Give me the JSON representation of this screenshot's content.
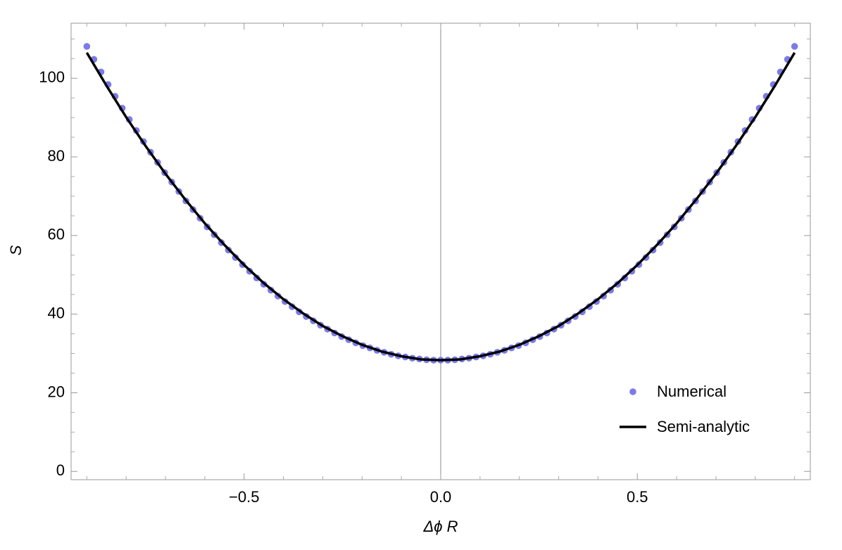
{
  "chart_data": {
    "type": "scatter",
    "x_label": "Δϕ R",
    "y_label": "S",
    "xlim": [
      -0.94,
      0.94
    ],
    "ylim": [
      -2.1,
      114
    ],
    "xticks": [
      {
        "value": -0.5,
        "label": "−0.5"
      },
      {
        "value": 0,
        "label": "0.0"
      },
      {
        "value": 0.5,
        "label": "0.5"
      }
    ],
    "yticks": [
      0,
      20,
      40,
      60,
      80,
      100
    ],
    "x_minor_ticks": [
      -0.9,
      -0.8,
      -0.7,
      -0.6,
      -0.4,
      -0.3,
      -0.2,
      -0.1,
      0.1,
      0.2,
      0.3,
      0.4,
      0.6,
      0.7,
      0.8,
      0.9
    ],
    "y_minor_ticks": [
      5,
      10,
      15,
      25,
      30,
      35,
      45,
      50,
      55,
      65,
      70,
      75,
      85,
      90,
      95,
      105,
      110
    ],
    "legend": "lower right",
    "series": [
      {
        "name": "Numerical",
        "color": "#7b7be8",
        "type": "scatter",
        "x": [
          -0.9,
          -0.882,
          -0.864,
          -0.846,
          -0.828,
          -0.81,
          -0.792,
          -0.774,
          -0.756,
          -0.738,
          -0.72,
          -0.702,
          -0.684,
          -0.666,
          -0.648,
          -0.63,
          -0.612,
          -0.594,
          -0.576,
          -0.558,
          -0.54,
          -0.522,
          -0.504,
          -0.486,
          -0.468,
          -0.45,
          -0.432,
          -0.414,
          -0.396,
          -0.378,
          -0.36,
          -0.342,
          -0.324,
          -0.306,
          -0.288,
          -0.27,
          -0.252,
          -0.234,
          -0.216,
          -0.198,
          -0.18,
          -0.162,
          -0.144,
          -0.126,
          -0.108,
          -0.09,
          -0.072,
          -0.054,
          -0.036,
          -0.018,
          0,
          0.018,
          0.036,
          0.054,
          0.072,
          0.09,
          0.108,
          0.126,
          0.144,
          0.162,
          0.18,
          0.198,
          0.216,
          0.234,
          0.252,
          0.27,
          0.288,
          0.306,
          0.324,
          0.342,
          0.36,
          0.378,
          0.396,
          0.414,
          0.432,
          0.45,
          0.468,
          0.486,
          0.504,
          0.522,
          0.54,
          0.558,
          0.576,
          0.594,
          0.612,
          0.63,
          0.648,
          0.666,
          0.684,
          0.702,
          0.72,
          0.738,
          0.756,
          0.774,
          0.792,
          0.81,
          0.828,
          0.846,
          0.864,
          0.882,
          0.9
        ],
        "values": [
          108.1,
          104.8,
          101.6,
          98.4,
          95.4,
          92.4,
          89.5,
          86.7,
          83.9,
          81.2,
          78.6,
          76,
          73.6,
          71.2,
          68.8,
          66.6,
          64.4,
          62.2,
          60.2,
          58.2,
          56.3,
          54.4,
          52.6,
          50.9,
          49.2,
          47.6,
          46.1,
          44.6,
          43.2,
          41.9,
          40.6,
          39.4,
          38.3,
          37.2,
          36.2,
          35.2,
          34.3,
          33.5,
          32.7,
          32,
          31.4,
          30.8,
          30.3,
          29.8,
          29.4,
          29.1,
          28.8,
          28.6,
          28.4,
          28.3,
          28.3,
          28.3,
          28.4,
          28.6,
          28.8,
          29.1,
          29.4,
          29.8,
          30.3,
          30.8,
          31.4,
          32,
          32.7,
          33.5,
          34.3,
          35.2,
          36.2,
          37.2,
          38.3,
          39.4,
          40.6,
          41.9,
          43.2,
          44.6,
          46.1,
          47.6,
          49.2,
          50.9,
          52.6,
          54.4,
          56.3,
          58.2,
          60.2,
          62.2,
          64.4,
          66.6,
          68.8,
          71.2,
          73.6,
          76,
          78.6,
          81.2,
          83.9,
          86.7,
          89.5,
          92.4,
          95.4,
          98.4,
          101.6,
          104.8,
          108.1
        ]
      },
      {
        "name": "Semi-analytic",
        "color": "#000000",
        "type": "line",
        "x": [
          -0.9,
          -0.85,
          -0.8,
          -0.75,
          -0.7,
          -0.65,
          -0.6,
          -0.55,
          -0.5,
          -0.45,
          -0.4,
          -0.35,
          -0.3,
          -0.25,
          -0.2,
          -0.15,
          -0.1,
          -0.05,
          0,
          0.05,
          0.1,
          0.15,
          0.2,
          0.25,
          0.3,
          0.35,
          0.4,
          0.45,
          0.5,
          0.55,
          0.6,
          0.65,
          0.7,
          0.75,
          0.8,
          0.85,
          0.9
        ],
        "values": [
          106.5,
          98.1,
          90.1,
          82.7,
          75.7,
          69.2,
          63.1,
          57.6,
          52.5,
          47.9,
          43.8,
          40.2,
          37,
          34.4,
          32.2,
          30.5,
          29.3,
          28.5,
          28.3,
          28.5,
          29.3,
          30.5,
          32.2,
          34.4,
          37,
          40.2,
          43.8,
          47.9,
          52.5,
          57.6,
          63.1,
          69.2,
          75.7,
          82.7,
          90.1,
          98.1,
          106.5
        ]
      }
    ]
  }
}
